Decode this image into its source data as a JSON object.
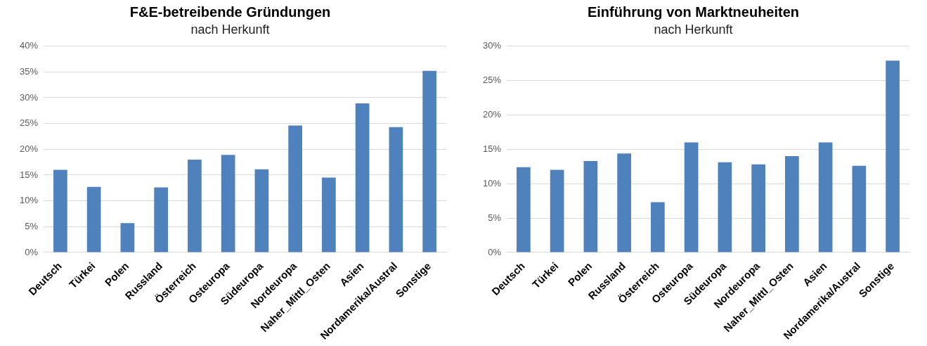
{
  "chart_data": [
    {
      "type": "bar",
      "title": "F&E-betreibende Gründungen",
      "subtitle": "nach Herkunft",
      "categories": [
        "Deutsch",
        "Türkei",
        "Polen",
        "Russland",
        "Österreich",
        "Osteuropa",
        "Südeuropa",
        "Nordeuropa",
        "Naher_Mittl_Osten",
        "Asien",
        "Nordamerika/Austral",
        "Sonstige"
      ],
      "values": [
        16,
        12.7,
        5.7,
        12.6,
        18,
        18.9,
        16.1,
        24.6,
        14.5,
        28.9,
        24.3,
        35.2
      ],
      "color": "#4f81bd",
      "ylim": [
        0,
        40
      ],
      "yticks": [
        {
          "value": 0,
          "label": "0%"
        },
        {
          "value": 5,
          "label": "5%"
        },
        {
          "value": 10,
          "label": "10%"
        },
        {
          "value": 15,
          "label": "15%"
        },
        {
          "value": 20,
          "label": "20%"
        },
        {
          "value": 25,
          "label": "25%"
        },
        {
          "value": 30,
          "label": "30%"
        },
        {
          "value": 35,
          "label": "35%"
        },
        {
          "value": 40,
          "label": "40%"
        }
      ],
      "grid": "y"
    },
    {
      "type": "bar",
      "title": "Einführung von Marktneuheiten",
      "subtitle": "nach Herkunft",
      "categories": [
        "Deutsch",
        "Türkei",
        "Polen",
        "Russland",
        "Österreich",
        "Osteuropa",
        "Südeuropa",
        "Nordeuropa",
        "Naher_Mittl_Osten",
        "Asien",
        "Nordamerika/Austral",
        "Sonstige"
      ],
      "values": [
        12.4,
        12,
        13.3,
        14.4,
        7.3,
        16,
        13.1,
        12.8,
        14,
        16,
        12.6,
        27.9
      ],
      "color": "#4f81bd",
      "ylim": [
        0,
        30
      ],
      "yticks": [
        {
          "value": 0,
          "label": "0%"
        },
        {
          "value": 5,
          "label": "5%"
        },
        {
          "value": 10,
          "label": "10%"
        },
        {
          "value": 15,
          "label": "15%"
        },
        {
          "value": 20,
          "label": "20%"
        },
        {
          "value": 25,
          "label": "25%"
        },
        {
          "value": 30,
          "label": "30%"
        }
      ],
      "grid": "y"
    }
  ]
}
